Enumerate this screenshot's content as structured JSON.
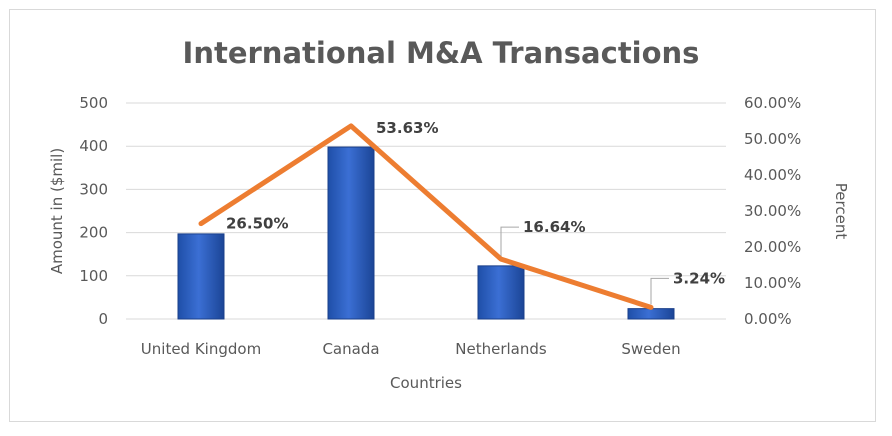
{
  "chart_data": {
    "type": "bar",
    "title": "International M&A Transactions",
    "xlabel": "Countries",
    "ylabel": "Amount in ($mil)",
    "y2label": "Percent",
    "categories": [
      "United Kingdom",
      "Canada",
      "Netherlands",
      "Sweden"
    ],
    "ylim": [
      0,
      500
    ],
    "y2lim": [
      0,
      60
    ],
    "yticks": [
      "0",
      "100",
      "200",
      "300",
      "400",
      "500"
    ],
    "y2ticks": [
      "0.00%",
      "10.00%",
      "20.00%",
      "30.00%",
      "40.00%",
      "50.00%",
      "60.00%"
    ],
    "grid": true,
    "series": [
      {
        "kind": "bar",
        "axis": "left",
        "values": [
          197,
          398,
          123,
          24
        ],
        "color": "#2f5fbf"
      },
      {
        "kind": "line",
        "axis": "right",
        "values": [
          26.5,
          53.63,
          16.64,
          3.24
        ],
        "labels": [
          "26.50%",
          "53.63%",
          "16.64%",
          "3.24%"
        ],
        "color": "#ed7d31"
      }
    ]
  }
}
